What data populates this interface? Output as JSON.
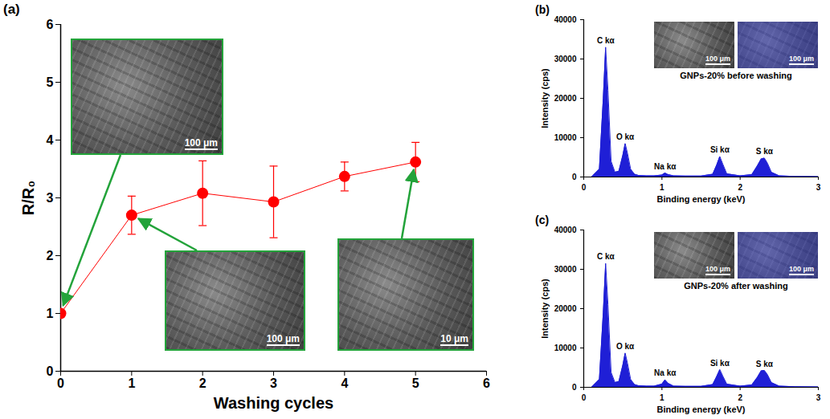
{
  "chart_data": [
    {
      "panel": "(a)",
      "type": "line",
      "x": [
        0,
        1,
        2,
        3,
        4,
        5
      ],
      "values": [
        1,
        2.7,
        3.08,
        2.93,
        3.37,
        3.62
      ],
      "errors": [
        0,
        0.33,
        0.56,
        0.62,
        0.25,
        0.34
      ],
      "color": "#ff0000",
      "marker": "circle",
      "x_label": "Washing cycles",
      "y_label": "R/R₀",
      "xlim": [
        0,
        6
      ],
      "xticks": [
        0,
        1,
        2,
        3,
        4,
        5,
        6
      ],
      "ylim": [
        0,
        6
      ],
      "yticks": [
        0,
        1,
        2,
        3,
        4,
        5,
        6
      ],
      "annotations": [
        {
          "text": "100 μm",
          "x": 0,
          "y": 1
        },
        {
          "text": "100 μm",
          "x": 1,
          "y": 2.7
        },
        {
          "text": "10 μm",
          "x": 5,
          "y": 3.62
        }
      ]
    },
    {
      "panel": "(b)",
      "type": "area",
      "x": [
        0.1,
        0.2,
        0.25,
        0.28,
        0.31,
        0.35,
        0.4,
        0.45,
        0.5,
        0.53,
        0.56,
        0.6,
        0.65,
        0.7,
        0.8,
        0.9,
        1.0,
        1.04,
        1.08,
        1.15,
        1.3,
        1.5,
        1.65,
        1.7,
        1.74,
        1.78,
        1.83,
        2.0,
        2.15,
        2.22,
        2.27,
        2.31,
        2.35,
        2.4,
        2.5,
        2.7,
        3.0
      ],
      "values": [
        0,
        2000,
        20000,
        33000,
        22000,
        4000,
        1200,
        1500,
        5500,
        8500,
        6000,
        2000,
        700,
        400,
        300,
        300,
        500,
        1000,
        600,
        300,
        250,
        250,
        700,
        3000,
        5200,
        3200,
        800,
        300,
        600,
        2800,
        4600,
        4800,
        3500,
        1200,
        300,
        150,
        100
      ],
      "color": "#1f1fd6",
      "x_label": "Binding energy (keV)",
      "y_label": "Intensity (cps)",
      "xlim": [
        0,
        3
      ],
      "xticks": [
        0,
        1,
        2,
        3
      ],
      "ylim": [
        0,
        40000
      ],
      "yticks": [
        0,
        10000,
        20000,
        30000,
        40000
      ],
      "annotations": [
        {
          "text": "C kα",
          "x": 0.28,
          "y": 33000
        },
        {
          "text": "O kα",
          "x": 0.53,
          "y": 8500
        },
        {
          "text": "Na kα",
          "x": 1.04,
          "y": 1000
        },
        {
          "text": "Si kα",
          "x": 1.74,
          "y": 5200
        },
        {
          "text": "S kα",
          "x": 2.31,
          "y": 4800
        }
      ],
      "caption": "GNPs-20% before washing",
      "scale_bars": [
        "100 μm",
        "100 μm"
      ]
    },
    {
      "panel": "(c)",
      "type": "area",
      "x": [
        0.1,
        0.2,
        0.25,
        0.28,
        0.31,
        0.35,
        0.4,
        0.45,
        0.5,
        0.53,
        0.56,
        0.6,
        0.65,
        0.7,
        0.8,
        0.9,
        1.0,
        1.04,
        1.08,
        1.15,
        1.3,
        1.5,
        1.65,
        1.7,
        1.74,
        1.78,
        1.83,
        2.0,
        2.15,
        2.22,
        2.27,
        2.31,
        2.35,
        2.4,
        2.5,
        2.7,
        3.0
      ],
      "values": [
        0,
        2000,
        19000,
        31500,
        21000,
        3800,
        1200,
        1500,
        5600,
        8700,
        6100,
        2000,
        700,
        400,
        300,
        300,
        800,
        1900,
        1000,
        300,
        250,
        250,
        700,
        2700,
        4500,
        2800,
        800,
        300,
        600,
        2500,
        4200,
        4300,
        3200,
        1200,
        300,
        150,
        100
      ],
      "color": "#1f1fd6",
      "x_label": "Binding energy (keV)",
      "y_label": "Intensity (cps)",
      "xlim": [
        0,
        3
      ],
      "xticks": [
        0,
        1,
        2,
        3
      ],
      "ylim": [
        0,
        40000
      ],
      "yticks": [
        0,
        10000,
        20000,
        30000,
        40000
      ],
      "annotations": [
        {
          "text": "C kα",
          "x": 0.28,
          "y": 31500
        },
        {
          "text": "O kα",
          "x": 0.53,
          "y": 8700
        },
        {
          "text": "Na kα",
          "x": 1.04,
          "y": 1900
        },
        {
          "text": "Si kα",
          "x": 1.74,
          "y": 4500
        },
        {
          "text": "S kα",
          "x": 2.31,
          "y": 4300
        }
      ],
      "caption": "GNPs-20% after washing",
      "scale_bars": [
        "100 μm",
        "100 μm"
      ]
    }
  ]
}
